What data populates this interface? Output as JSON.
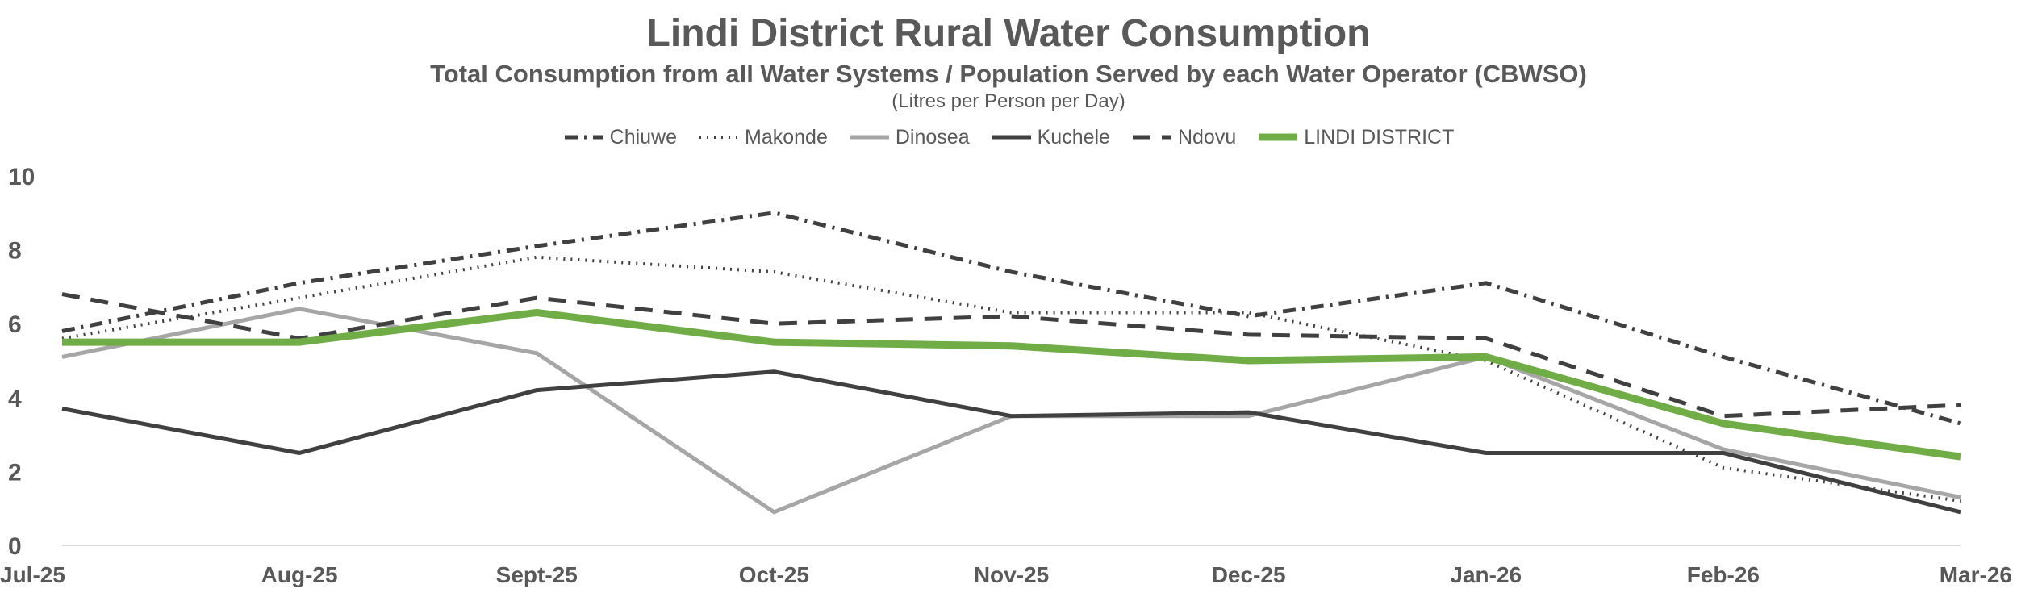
{
  "chart_data": {
    "type": "line",
    "title": "Lindi District Rural Water Consumption",
    "subtitle": "Total Consumption from all Water Systems / Population Served by each Water Operator (CBWSO)",
    "units_note": "(Litres per Person per Day)",
    "xlabel": "",
    "ylabel": "",
    "ylim": [
      0,
      10
    ],
    "yticks": [
      0,
      2,
      4,
      6,
      8,
      10
    ],
    "grid": false,
    "legend_position": "top-center",
    "categories": [
      "Jul-25",
      "Aug-25",
      "Sept-25",
      "Oct-25",
      "Nov-25",
      "Dec-25",
      "Jan-26",
      "Feb-26",
      "Mar-26"
    ],
    "series": [
      {
        "name": "Chiuwe",
        "color": "#404040",
        "style": "dash-dot",
        "values": [
          5.8,
          7.1,
          8.1,
          9.0,
          7.4,
          6.2,
          7.1,
          5.1,
          3.3
        ]
      },
      {
        "name": "Makonde",
        "color": "#404040",
        "style": "dotted",
        "values": [
          5.6,
          6.7,
          7.8,
          7.4,
          6.3,
          6.3,
          5.0,
          2.1,
          1.2
        ]
      },
      {
        "name": "Dinosea",
        "color": "#a6a6a6",
        "style": "solid",
        "values": [
          5.1,
          6.4,
          5.2,
          0.9,
          3.5,
          3.5,
          5.1,
          2.6,
          1.3
        ]
      },
      {
        "name": "Kuchele",
        "color": "#404040",
        "style": "solid",
        "values": [
          3.7,
          2.5,
          4.2,
          4.7,
          3.5,
          3.6,
          2.5,
          2.5,
          0.9
        ]
      },
      {
        "name": "Ndovu",
        "color": "#404040",
        "style": "dashed",
        "values": [
          6.8,
          5.6,
          6.7,
          6.0,
          6.2,
          5.7,
          5.6,
          3.5,
          3.8
        ]
      },
      {
        "name": "LINDI DISTRICT",
        "color": "#70ad47",
        "style": "solid-bold",
        "values": [
          5.5,
          5.5,
          6.3,
          5.5,
          5.4,
          5.0,
          5.1,
          3.3,
          2.4
        ]
      }
    ]
  }
}
